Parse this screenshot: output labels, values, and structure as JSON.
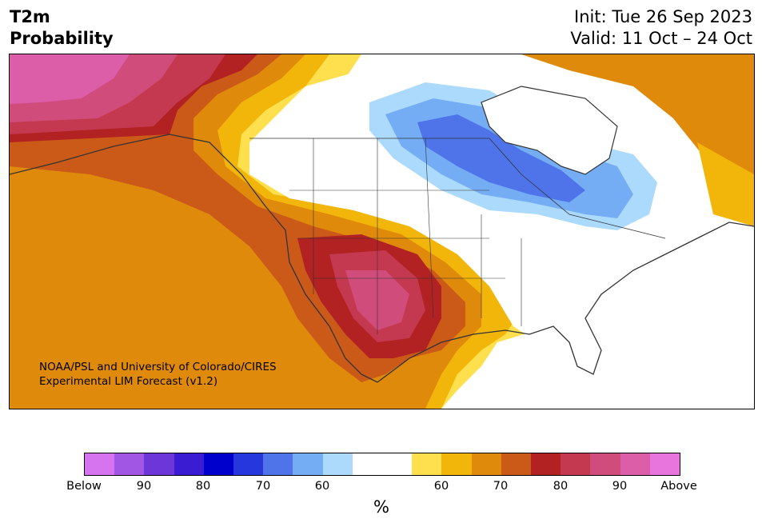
{
  "title": {
    "line1": "T2m",
    "line2": "Probability"
  },
  "info": {
    "init": "Init: Tue 26 Sep 2023",
    "valid": "Valid: 11 Oct – 24 Oct"
  },
  "credit": {
    "line1": "NOAA/PSL and University of Colorado/CIRES",
    "line2": "Experimental LIM Forecast (v1.2)"
  },
  "colorbar": {
    "unit": "%",
    "colors": [
      "#d574ee",
      "#a256e4",
      "#6d36d8",
      "#3a1dd3",
      "#0000cc",
      "#2637dc",
      "#4f74ea",
      "#74adf4",
      "#abdafc",
      "#ffffff",
      "#ffffff",
      "#fedf4d",
      "#f2b60a",
      "#e08a0c",
      "#cb5a19",
      "#b22222",
      "#c43950",
      "#d04c7a",
      "#dc5da8",
      "#e874de"
    ],
    "ticks": [
      "Below",
      "90",
      "80",
      "70",
      "60",
      "60",
      "70",
      "80",
      "90",
      "Above"
    ]
  },
  "map_colors": {
    "dark_red": "#b22222",
    "crimson": "#c43950",
    "rose": "#d04c7a",
    "magenta": "#dc5da8",
    "orange_red": "#cb5a19",
    "dark_orange": "#e08a0c",
    "gold": "#f2b60a",
    "yellow": "#fedf4d",
    "light_blue": "#abdafc",
    "sky_blue": "#74adf4",
    "blue": "#4f74ea",
    "outline": "#333333"
  }
}
